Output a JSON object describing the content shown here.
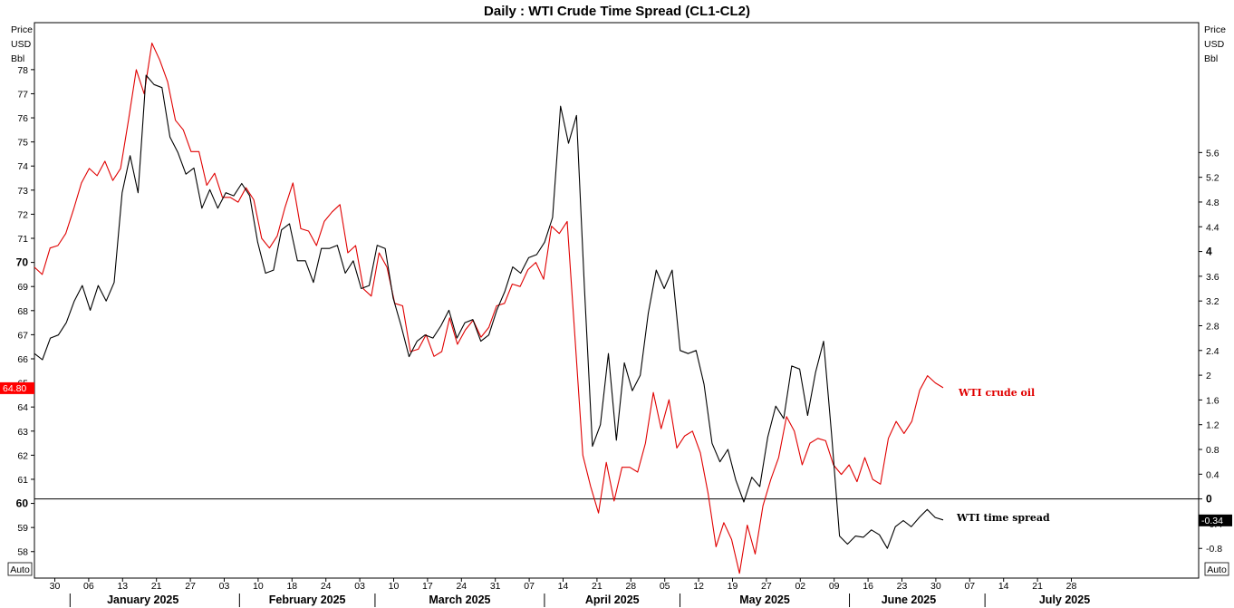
{
  "chart_data": {
    "type": "line",
    "title": "Daily : WTI Crude Time Spread (CL1-CL2)",
    "left_axis": {
      "labels": [
        "Price",
        "USD",
        "Bbl"
      ],
      "ylim": [
        56.9,
        79.95
      ],
      "ticks": [
        58,
        59,
        60,
        61,
        62,
        63,
        64,
        65,
        66,
        67,
        68,
        69,
        70,
        71,
        72,
        73,
        74,
        75,
        76,
        77,
        78
      ],
      "bold_ticks": [
        60,
        70
      ]
    },
    "right_axis": {
      "labels": [
        "Price",
        "USD",
        "Bbl"
      ],
      "ylim": [
        -1.28,
        7.7
      ],
      "ticks": [
        -0.8,
        -0.4,
        0,
        0.4,
        0.8,
        1.2,
        1.6,
        2,
        2.4,
        2.8,
        3.2,
        3.6,
        4,
        4.4,
        4.8,
        5.2,
        5.6
      ],
      "tick_labels": [
        "-0.8",
        "-0.4",
        "0",
        "0.4",
        "0.8",
        "1.2",
        "1.6",
        "2",
        "2.4",
        "2.8",
        "3.2",
        "3.6",
        "4",
        "4.4",
        "4.8",
        "5.2",
        "5.6"
      ],
      "bold_ticks": [
        0,
        4
      ]
    },
    "auto_label_left": "Auto",
    "auto_label_right": "Auto",
    "zero_line": 0,
    "x_ticks": [
      "30",
      "06",
      "13",
      "21",
      "27",
      "03",
      "10",
      "18",
      "24",
      "03",
      "10",
      "17",
      "24",
      "31",
      "07",
      "14",
      "21",
      "28",
      "05",
      "12",
      "19",
      "27",
      "02",
      "09",
      "16",
      "23",
      "30",
      "07",
      "14",
      "21",
      "28"
    ],
    "months": [
      "January 2025",
      "February 2025",
      "March 2025",
      "April 2025",
      "May 2025",
      "June 2025",
      "July 2025"
    ],
    "series": [
      {
        "name": "WTI crude oil",
        "axis": "left",
        "color": "#e00000",
        "last_value_label": "64.80",
        "values": [
          69.8,
          69.5,
          70.6,
          70.7,
          71.2,
          72.2,
          73.3,
          73.9,
          73.6,
          74.2,
          73.4,
          73.9,
          75.9,
          78.0,
          77.0,
          79.1,
          78.4,
          77.5,
          75.9,
          75.5,
          74.6,
          74.6,
          73.2,
          73.7,
          72.7,
          72.7,
          72.5,
          73.1,
          72.6,
          71.0,
          70.6,
          71.1,
          72.3,
          73.3,
          71.4,
          71.3,
          70.7,
          71.7,
          72.1,
          72.4,
          70.4,
          70.7,
          68.9,
          68.6,
          70.4,
          69.8,
          68.3,
          68.2,
          66.3,
          66.4,
          67.0,
          66.1,
          66.3,
          67.7,
          66.6,
          67.2,
          67.6,
          66.9,
          67.3,
          68.2,
          68.3,
          69.1,
          69.0,
          69.7,
          70.0,
          69.3,
          71.5,
          71.2,
          71.7,
          66.9,
          62.0,
          60.7,
          59.6,
          61.7,
          60.1,
          61.5,
          61.5,
          61.3,
          62.5,
          64.6,
          63.1,
          64.3,
          62.3,
          62.8,
          63.0,
          62.1,
          60.4,
          58.2,
          59.2,
          58.5,
          57.1,
          59.1,
          57.9,
          59.9,
          61.0,
          61.9,
          63.6,
          63.0,
          61.6,
          62.5,
          62.7,
          62.6,
          61.6,
          61.2,
          61.6,
          60.9,
          61.9,
          61.0,
          60.8,
          62.7,
          63.4,
          62.9,
          63.4,
          64.7,
          65.3,
          65.0,
          64.8
        ]
      },
      {
        "name": "WTI time spread",
        "axis": "right",
        "color": "#000000",
        "last_value_label": "-0.34",
        "values": [
          2.35,
          2.25,
          2.6,
          2.65,
          2.85,
          3.2,
          3.45,
          3.05,
          3.45,
          3.2,
          3.5,
          4.95,
          5.55,
          4.95,
          6.85,
          6.7,
          6.65,
          5.85,
          5.6,
          5.25,
          5.35,
          4.7,
          5.0,
          4.7,
          4.95,
          4.9,
          5.1,
          4.9,
          4.15,
          3.65,
          3.7,
          4.35,
          4.45,
          3.85,
          3.85,
          3.5,
          4.05,
          4.05,
          4.1,
          3.65,
          3.85,
          3.4,
          3.45,
          4.1,
          4.05,
          3.25,
          2.8,
          2.3,
          2.55,
          2.65,
          2.6,
          2.8,
          3.05,
          2.6,
          2.85,
          2.9,
          2.55,
          2.65,
          3.05,
          3.35,
          3.75,
          3.65,
          3.9,
          3.95,
          4.15,
          4.55,
          6.35,
          5.75,
          6.2,
          3.4,
          0.85,
          1.2,
          2.35,
          0.95,
          2.2,
          1.75,
          2.0,
          3.0,
          3.7,
          3.4,
          3.7,
          2.4,
          2.35,
          2.4,
          1.85,
          0.9,
          0.6,
          0.8,
          0.3,
          -0.05,
          0.35,
          0.2,
          1.0,
          1.5,
          1.3,
          2.15,
          2.1,
          1.35,
          2.05,
          2.55,
          1.05,
          -0.6,
          -0.73,
          -0.6,
          -0.62,
          -0.5,
          -0.58,
          -0.8,
          -0.45,
          -0.35,
          -0.45,
          -0.3,
          -0.17,
          -0.3,
          -0.34
        ]
      }
    ]
  }
}
